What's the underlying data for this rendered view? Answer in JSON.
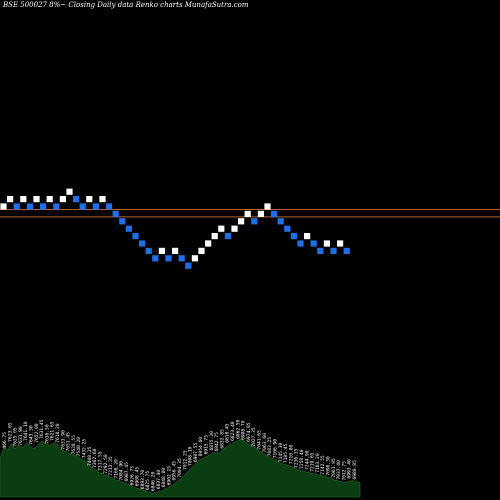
{
  "title": "BSE 500027 8%~  Closing Daily data  Renko  charts MunafaSutra.com",
  "colors": {
    "background": "#000000",
    "up_brick": "#ffffff",
    "down_brick": "#1e6fe8",
    "ref_line": "#b5642a",
    "volume_fill": "#0a3d12",
    "volume_stroke": "#1a5a22",
    "label_color": "#ffffff"
  },
  "chart_data": {
    "type": "renko",
    "title": "BSE 500027 8%~  Closing Daily data  Renko  charts MunafaSutra.com",
    "grid": false,
    "legend": "none",
    "bricks": [
      {
        "level": 0,
        "dir": "up"
      },
      {
        "level": 1,
        "dir": "up"
      },
      {
        "level": 0,
        "dir": "down"
      },
      {
        "level": 1,
        "dir": "up"
      },
      {
        "level": 0,
        "dir": "down"
      },
      {
        "level": 1,
        "dir": "up"
      },
      {
        "level": 0,
        "dir": "down"
      },
      {
        "level": 1,
        "dir": "up"
      },
      {
        "level": 0,
        "dir": "down"
      },
      {
        "level": 1,
        "dir": "up"
      },
      {
        "level": 2,
        "dir": "up"
      },
      {
        "level": 1,
        "dir": "down"
      },
      {
        "level": 0,
        "dir": "down"
      },
      {
        "level": 1,
        "dir": "up"
      },
      {
        "level": 0,
        "dir": "down"
      },
      {
        "level": 1,
        "dir": "up"
      },
      {
        "level": 0,
        "dir": "down"
      },
      {
        "level": -1,
        "dir": "down"
      },
      {
        "level": -2,
        "dir": "down"
      },
      {
        "level": -3,
        "dir": "down"
      },
      {
        "level": -4,
        "dir": "down"
      },
      {
        "level": -5,
        "dir": "down"
      },
      {
        "level": -6,
        "dir": "down"
      },
      {
        "level": -7,
        "dir": "down"
      },
      {
        "level": -6,
        "dir": "up"
      },
      {
        "level": -7,
        "dir": "down"
      },
      {
        "level": -6,
        "dir": "up"
      },
      {
        "level": -7,
        "dir": "down"
      },
      {
        "level": -8,
        "dir": "down"
      },
      {
        "level": -7,
        "dir": "up"
      },
      {
        "level": -6,
        "dir": "up"
      },
      {
        "level": -5,
        "dir": "up"
      },
      {
        "level": -4,
        "dir": "up"
      },
      {
        "level": -3,
        "dir": "up"
      },
      {
        "level": -4,
        "dir": "down"
      },
      {
        "level": -3,
        "dir": "up"
      },
      {
        "level": -2,
        "dir": "up"
      },
      {
        "level": -1,
        "dir": "up"
      },
      {
        "level": -2,
        "dir": "down"
      },
      {
        "level": -1,
        "dir": "up"
      },
      {
        "level": 0,
        "dir": "up"
      },
      {
        "level": -1,
        "dir": "down"
      },
      {
        "level": -2,
        "dir": "down"
      },
      {
        "level": -3,
        "dir": "down"
      },
      {
        "level": -4,
        "dir": "down"
      },
      {
        "level": -5,
        "dir": "down"
      },
      {
        "level": -4,
        "dir": "up"
      },
      {
        "level": -5,
        "dir": "down"
      },
      {
        "level": -6,
        "dir": "down"
      },
      {
        "level": -5,
        "dir": "up"
      },
      {
        "level": -6,
        "dir": "down"
      },
      {
        "level": -5,
        "dir": "up"
      },
      {
        "level": -6,
        "dir": "down"
      }
    ],
    "reference_lines": [
      0,
      -1
    ],
    "volume": [
      40,
      52,
      48,
      55,
      50,
      53,
      51,
      56,
      52,
      50,
      54,
      58,
      55,
      53,
      56,
      54,
      50,
      47,
      45,
      44,
      42,
      40,
      38,
      35,
      30,
      28,
      25,
      24,
      22,
      20,
      18,
      17,
      15,
      14,
      12,
      10,
      9,
      8,
      6,
      5,
      4,
      5,
      6,
      8,
      10,
      12,
      15,
      18,
      22,
      26,
      30,
      34,
      38,
      40,
      42,
      44,
      46,
      45,
      48,
      52,
      54,
      56,
      58,
      60,
      57,
      55,
      53,
      50,
      47,
      44,
      42,
      40,
      38,
      36,
      34,
      33,
      32,
      30,
      28,
      27,
      26,
      25,
      24,
      23,
      22,
      21,
      20,
      18,
      17,
      16,
      15,
      16,
      17,
      16,
      15
    ],
    "volume_labels": [
      "466.75",
      "7623.05",
      "7625.05",
      "7633.90",
      "7641.10",
      "7643.30",
      "7652.00",
      "7631.45",
      "7636.50",
      "7621.65",
      "7618.20",
      "7633.90",
      "7651.45",
      "7628.55",
      "7540.20",
      "7432.25",
      "7408.25",
      "7362.60",
      "7317.55",
      "7292.50",
      "7213.35",
      "7168.20",
      "7084.90",
      "6987.45",
      "6926.75",
      "6908.45",
      "6893.70",
      "6875.75",
      "6846.20",
      "6837.40",
      "6848.80",
      "6902.15",
      "6956.45",
      "7004.35",
      "7012.25",
      "7008.10",
      "6987.55",
      "6954.60",
      "6915.75",
      "6875.30",
      "6842.75",
      "6832.85",
      "6818.45",
      "6823.40",
      "6862.50",
      "6908.70",
      "6974.85",
      "7027.35",
      "7041.65",
      "7063.60",
      "7083.25",
      "7106.90",
      "7145.30",
      "7185.45",
      "7210.80",
      "7236.35",
      "7258.40",
      "7244.90",
      "7219.65",
      "7183.20",
      "7142.55",
      "7098.30",
      "7061.85",
      "7037.40",
      "7012.75",
      "6993.40",
      "6980.85"
    ]
  }
}
